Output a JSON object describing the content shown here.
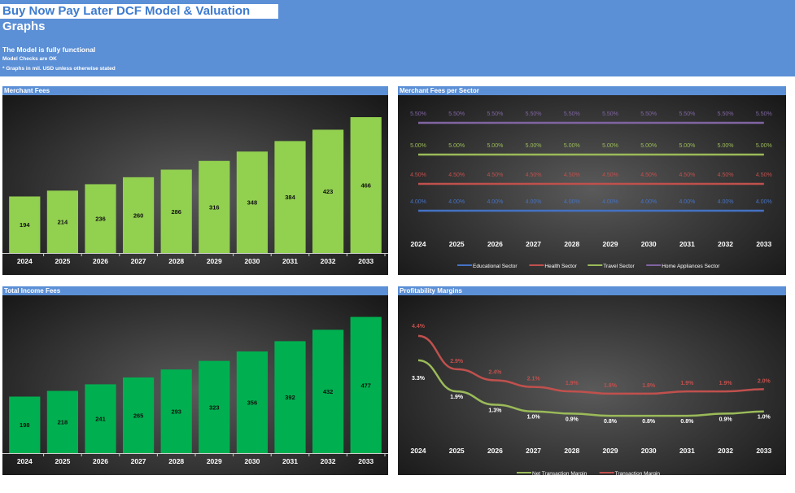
{
  "header": {
    "title": "Buy Now Pay Later DCF Model & Valuation",
    "subtitle": "Graphs",
    "status": "The Model is fully functional",
    "checks": "Model Checks are OK",
    "note": "* Graphs in mil. USD unless otherwise stated"
  },
  "colors": {
    "banner": "#5b8fd6",
    "merchant_bars": "#92d050",
    "income_bars": "#00b050",
    "educational": "#4472c4",
    "health": "#c0504d",
    "travel": "#9bbb59",
    "home_appliances": "#8064a2",
    "net_margin": "#9bbb59",
    "transaction_margin": "#c0504d"
  },
  "chart_data": [
    {
      "id": "merchant_fees",
      "title": "Merchant Fees",
      "type": "bar",
      "categories": [
        "2024",
        "2025",
        "2026",
        "2027",
        "2028",
        "2029",
        "2030",
        "2031",
        "2032",
        "2033"
      ],
      "values": [
        194,
        214,
        236,
        260,
        286,
        316,
        348,
        384,
        423,
        466
      ],
      "ylim": [
        0,
        480
      ]
    },
    {
      "id": "merchant_fees_per_sector",
      "title": "Merchant Fees per Sector",
      "type": "line",
      "categories": [
        "2024",
        "2025",
        "2026",
        "2027",
        "2028",
        "2029",
        "2030",
        "2031",
        "2032",
        "2033"
      ],
      "series": [
        {
          "name": "Educational Sector",
          "values": [
            4.0,
            4.0,
            4.0,
            4.0,
            4.0,
            4.0,
            4.0,
            4.0,
            4.0,
            4.0
          ],
          "labels": [
            "4.00%",
            "4.00%",
            "4.00%",
            "4.00%",
            "4.00%",
            "4.00%",
            "4.00%",
            "4.00%",
            "4.00%",
            "4.00%"
          ]
        },
        {
          "name": "Health Sector",
          "values": [
            4.5,
            4.5,
            4.5,
            4.5,
            4.5,
            4.5,
            4.5,
            4.5,
            4.5,
            4.5
          ],
          "labels": [
            "4.50%",
            "4.50%",
            "4.50%",
            "4.50%",
            "4.50%",
            "4.50%",
            "4.50%",
            "4.50%",
            "4.50%",
            "4.50%"
          ]
        },
        {
          "name": "Travel Sector",
          "values": [
            5.0,
            5.0,
            5.0,
            5.0,
            5.0,
            5.0,
            5.0,
            5.0,
            5.0,
            5.0
          ],
          "labels": [
            "5.00%",
            "5.00%",
            "5.00%",
            "5.00%",
            "5.00%",
            "5.00%",
            "5.00%",
            "5.00%",
            "5.00%",
            "5.00%"
          ]
        },
        {
          "name": "Home Appliances Sector",
          "values": [
            5.5,
            5.5,
            5.5,
            5.5,
            5.5,
            5.5,
            5.5,
            5.5,
            5.5,
            5.5
          ],
          "labels": [
            "5.50%",
            "5.50%",
            "5.50%",
            "5.50%",
            "5.50%",
            "5.50%",
            "5.50%",
            "5.50%",
            "5.50%",
            "5.50%"
          ]
        }
      ],
      "legend": "bottom"
    },
    {
      "id": "total_income_fees",
      "title": "Total Income Fees",
      "type": "bar",
      "categories": [
        "2024",
        "2025",
        "2026",
        "2027",
        "2028",
        "2029",
        "2030",
        "2031",
        "2032",
        "2033"
      ],
      "values": [
        198,
        218,
        241,
        265,
        293,
        323,
        356,
        392,
        432,
        477
      ],
      "ylim": [
        0,
        490
      ]
    },
    {
      "id": "profitability_margins",
      "title": "Profitability Margins",
      "type": "line",
      "categories": [
        "2024",
        "2025",
        "2026",
        "2027",
        "2028",
        "2029",
        "2030",
        "2031",
        "2032",
        "2033"
      ],
      "series": [
        {
          "name": "Net Transaction Margin",
          "values": [
            3.3,
            1.9,
            1.3,
            1.0,
            0.9,
            0.8,
            0.8,
            0.8,
            0.9,
            1.0
          ],
          "labels": [
            "3.3%",
            "1.9%",
            "1.3%",
            "1.0%",
            "0.9%",
            "0.8%",
            "0.8%",
            "0.8%",
            "0.9%",
            "1.0%"
          ]
        },
        {
          "name": "Transaction Margin",
          "values": [
            4.4,
            2.9,
            2.4,
            2.1,
            1.9,
            1.8,
            1.8,
            1.9,
            1.9,
            2.0
          ],
          "labels": [
            "4.4%",
            "2.9%",
            "2.4%",
            "2.1%",
            "1.9%",
            "1.8%",
            "1.8%",
            "1.9%",
            "1.9%",
            "2.0%"
          ]
        }
      ],
      "legend": "bottom"
    }
  ]
}
